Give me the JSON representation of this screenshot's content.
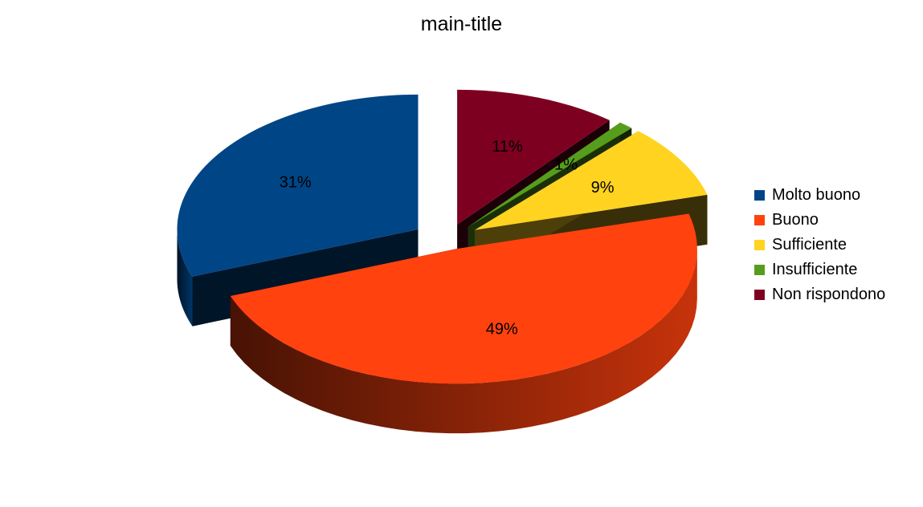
{
  "chart_data": {
    "type": "pie",
    "title": "main-title",
    "exploded": true,
    "three_d": true,
    "legend_position": "right",
    "slices": [
      {
        "name": "Molto buono",
        "value": 31,
        "label": "31%",
        "color": "#004586"
      },
      {
        "name": "Buono",
        "value": 49,
        "label": "49%",
        "color": "#FF420E"
      },
      {
        "name": "Sufficiente",
        "value": 9,
        "label": "9%",
        "color": "#FFD320"
      },
      {
        "name": "Insufficiente",
        "value": 1,
        "label": "1%",
        "color": "#579D1C"
      },
      {
        "name": "Non rispondono",
        "value": 11,
        "label": "11%",
        "color": "#7E0021"
      }
    ]
  }
}
